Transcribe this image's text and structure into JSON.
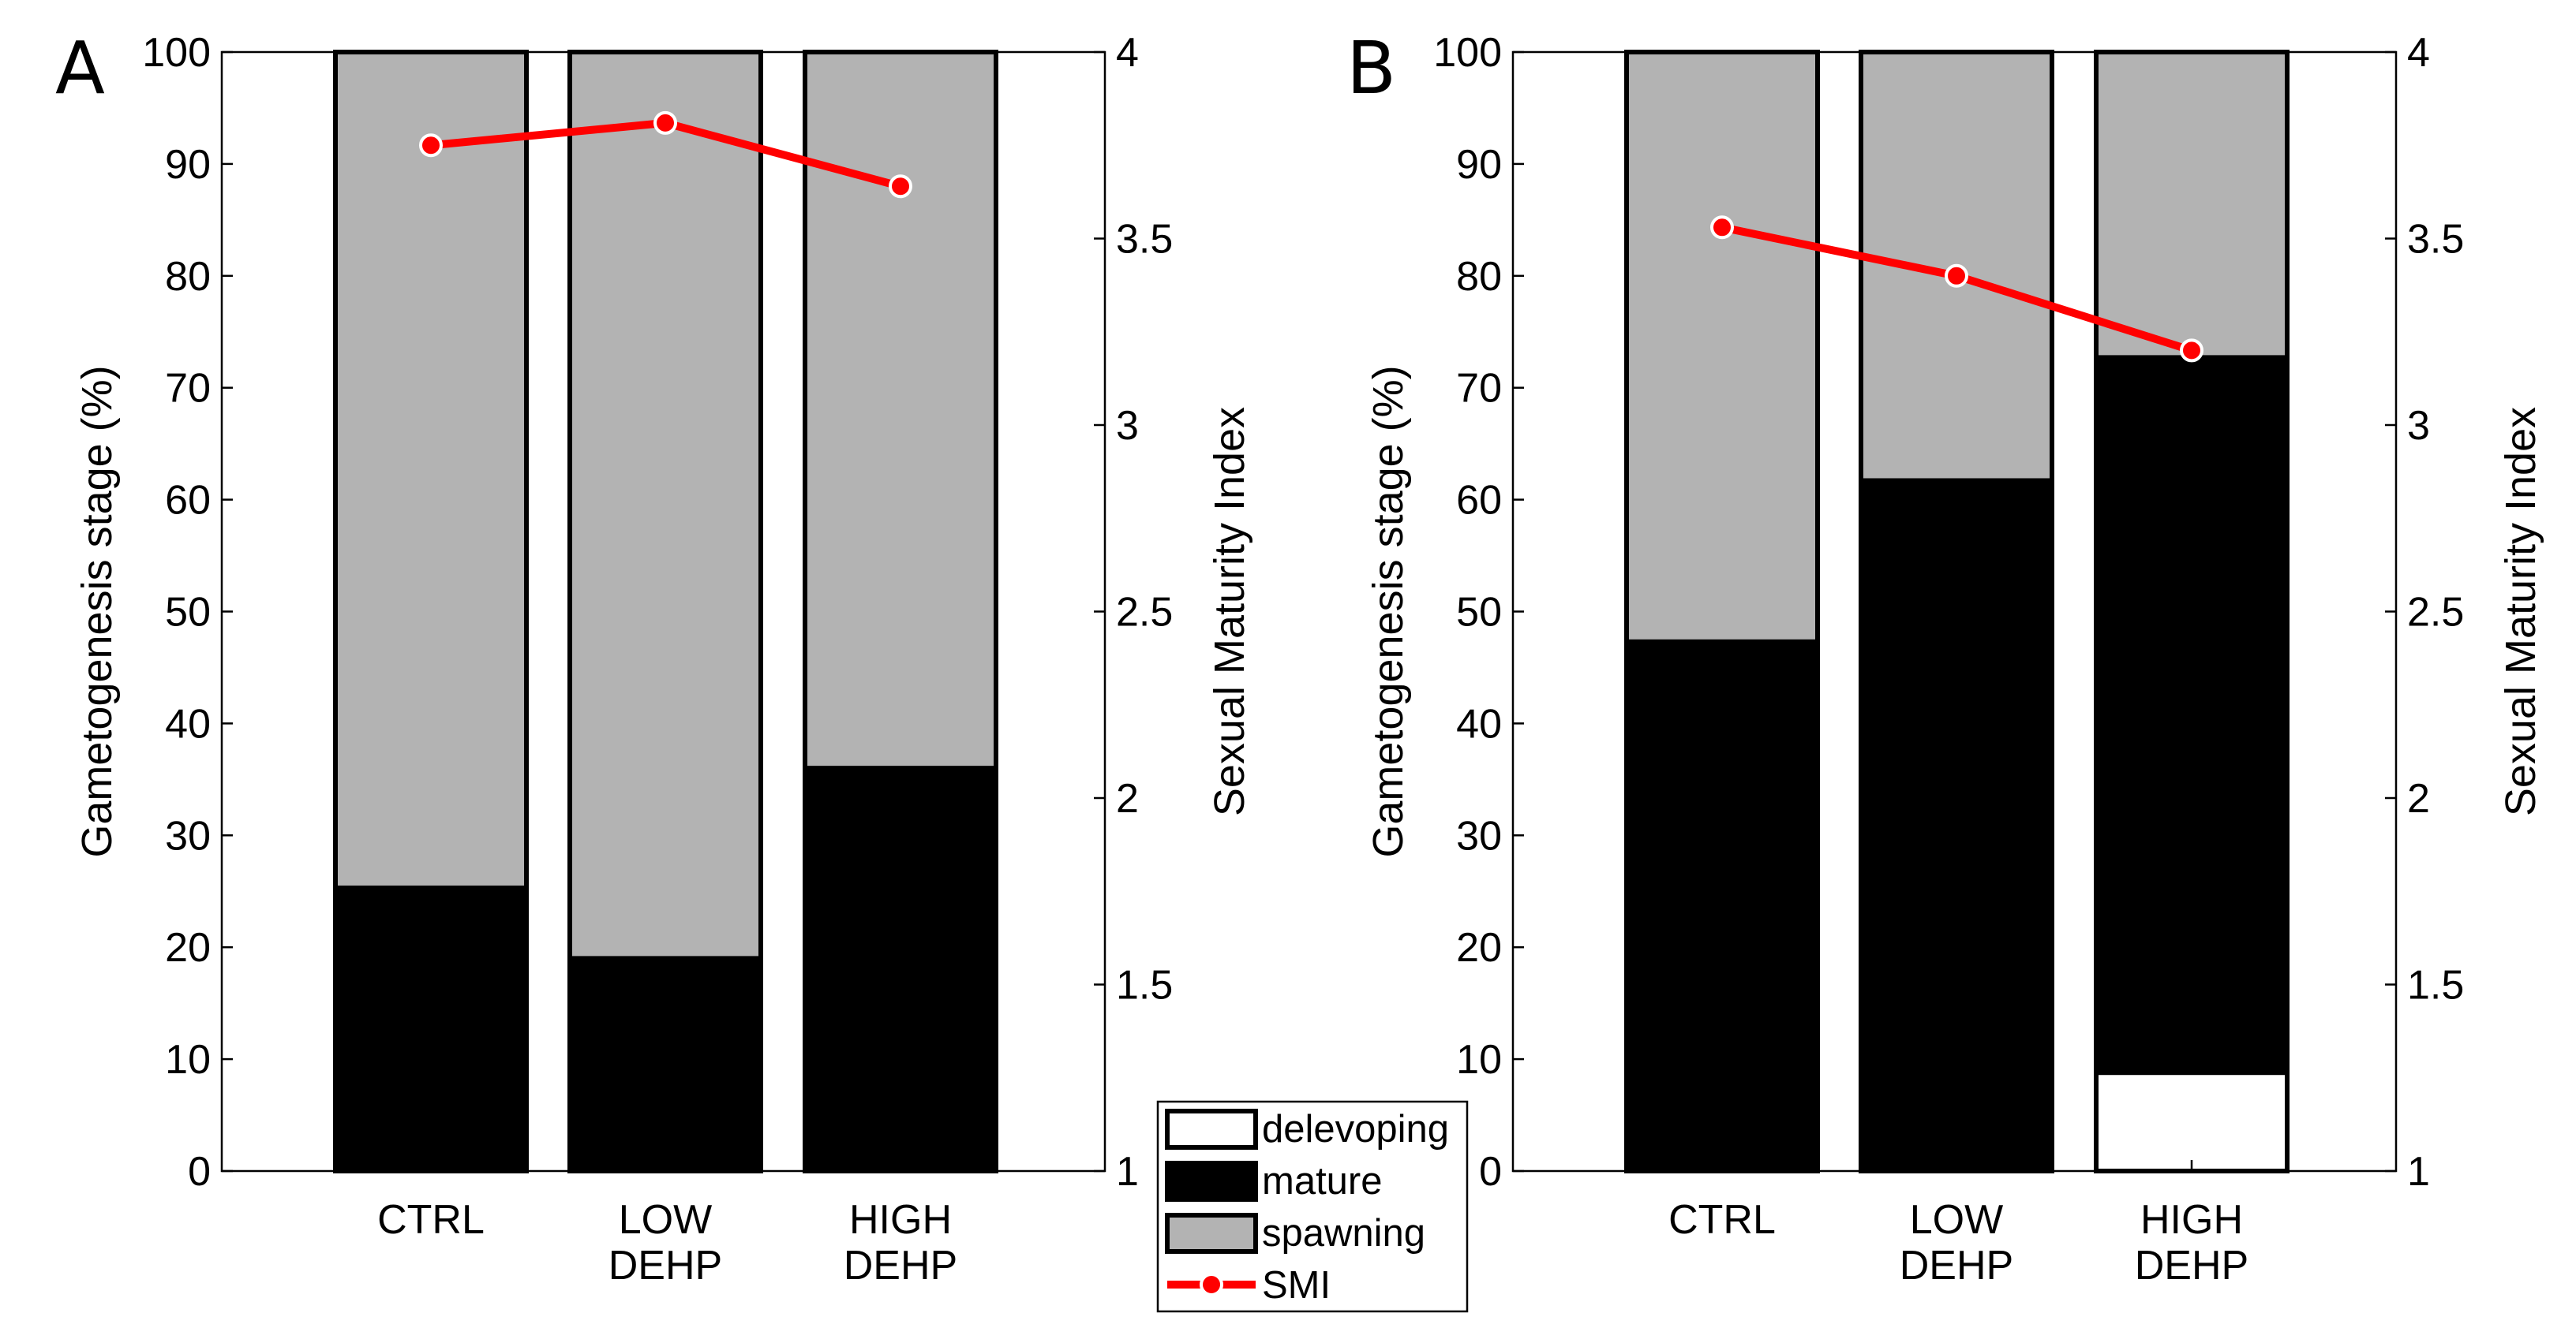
{
  "chart_data": [
    {
      "type": "bar",
      "stacked": true,
      "panel_label": "A",
      "categories": [
        [
          "CTRL"
        ],
        [
          "LOW",
          "DEHP"
        ],
        [
          "HIGH",
          "DEHP"
        ]
      ],
      "series": [
        {
          "name": "delevoping",
          "color": "#ffffff",
          "values": [
            0,
            0,
            0
          ]
        },
        {
          "name": "mature",
          "color": "#000000",
          "values": [
            25.3,
            19,
            36
          ]
        },
        {
          "name": "spawning",
          "color": "#b3b3b3",
          "values": [
            74.7,
            81,
            64
          ]
        }
      ],
      "line_series": {
        "name": "SMI",
        "color": "#ff0000",
        "axis": "right",
        "values": [
          3.75,
          3.81,
          3.64
        ]
      },
      "ylabel": "Gametogenesis stage (%)",
      "ylim": [
        0,
        100
      ],
      "yticks": [
        "0",
        "10",
        "20",
        "30",
        "40",
        "50",
        "60",
        "70",
        "80",
        "90",
        "100"
      ],
      "ylabel_right": "Sexual Maturity Index",
      "ylim_right": [
        1,
        4
      ],
      "yticks_right": [
        "1",
        "1.5",
        "2",
        "2.5",
        "3",
        "3.5",
        "4"
      ],
      "grid": false
    },
    {
      "type": "bar",
      "stacked": true,
      "panel_label": "B",
      "categories": [
        [
          "CTRL"
        ],
        [
          "LOW",
          "DEHP"
        ],
        [
          "HIGH",
          "DEHP"
        ]
      ],
      "series": [
        {
          "name": "delevoping",
          "color": "#ffffff",
          "values": [
            0,
            0,
            8.8
          ]
        },
        {
          "name": "mature",
          "color": "#000000",
          "values": [
            47.3,
            61.7,
            63.9
          ]
        },
        {
          "name": "spawning",
          "color": "#b3b3b3",
          "values": [
            52.7,
            38.3,
            27.3
          ]
        }
      ],
      "line_series": {
        "name": "SMI",
        "color": "#ff0000",
        "axis": "right",
        "values": [
          3.53,
          3.4,
          3.2
        ]
      },
      "ylabel": "Gametogenesis stage (%)",
      "ylim": [
        0,
        100
      ],
      "yticks": [
        "0",
        "10",
        "20",
        "30",
        "40",
        "50",
        "60",
        "70",
        "80",
        "90",
        "100"
      ],
      "ylabel_right": "Sexual Maturity Index",
      "ylim_right": [
        1,
        4
      ],
      "yticks_right": [
        "1",
        "1.5",
        "2",
        "2.5",
        "3",
        "3.5",
        "4"
      ],
      "grid": false
    }
  ],
  "legend": {
    "placement": "bottom-center",
    "items": [
      {
        "label": "delevoping",
        "kind": "patch",
        "color": "#ffffff"
      },
      {
        "label": "mature",
        "kind": "patch",
        "color": "#000000"
      },
      {
        "label": "spawning",
        "kind": "patch",
        "color": "#b3b3b3"
      },
      {
        "label": "SMI",
        "kind": "line",
        "color": "#ff0000"
      }
    ]
  }
}
